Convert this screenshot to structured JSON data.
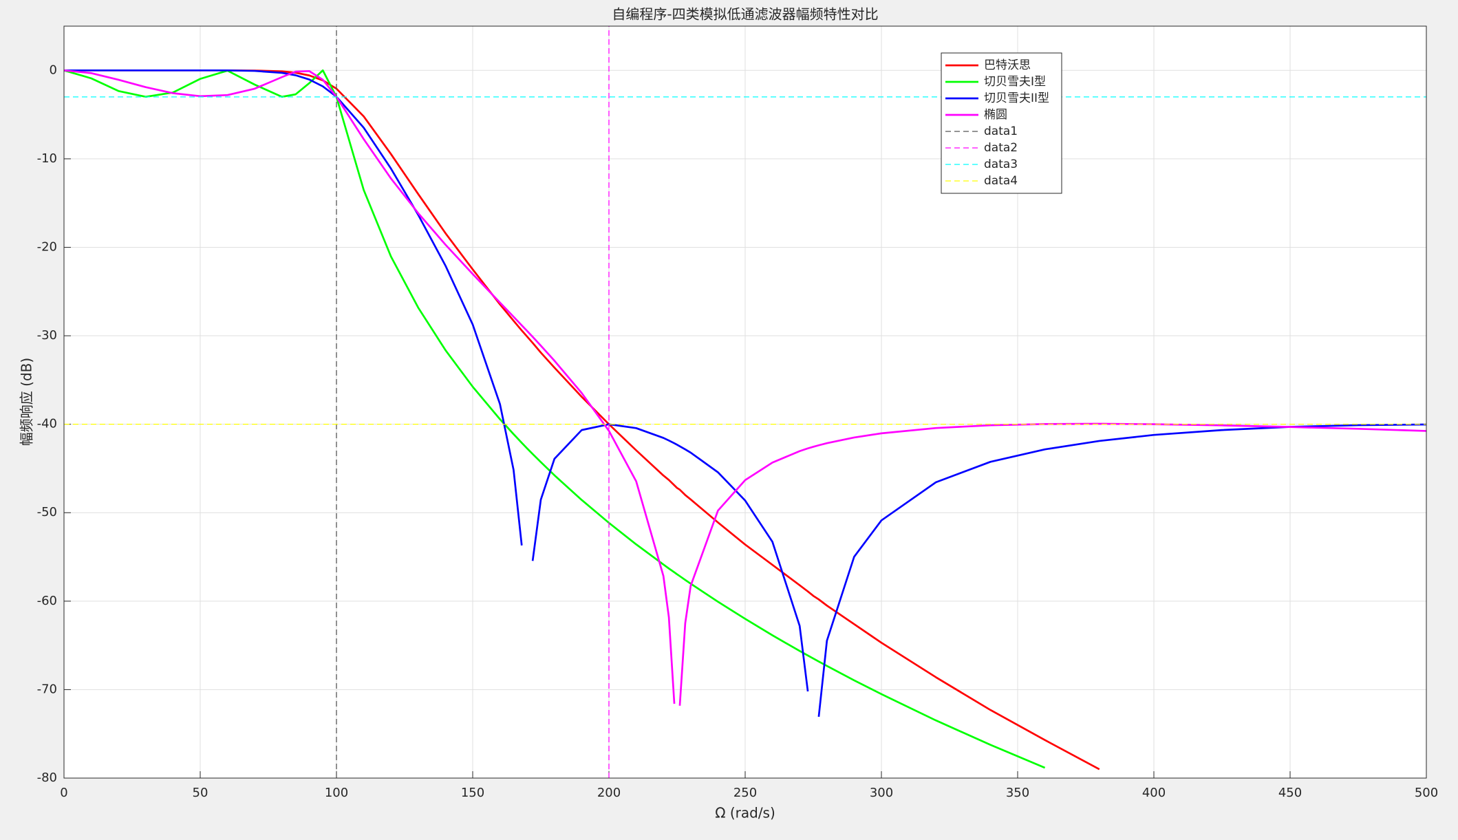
{
  "chart_data": {
    "type": "line",
    "title": "自编程序-四类模拟低通滤波器幅频特性对比",
    "x_label": "Ω (rad/s)",
    "y_label": "幅频响应 (dB)",
    "x": [
      0,
      10,
      20,
      30,
      40,
      50,
      60,
      70,
      80,
      85,
      90,
      95,
      100,
      110,
      120,
      130,
      140,
      150,
      160,
      165,
      168,
      170,
      172,
      175,
      180,
      190,
      200,
      210,
      220,
      222,
      224,
      225,
      226,
      228,
      230,
      240,
      250,
      260,
      270,
      273,
      275,
      277,
      280,
      290,
      300,
      320,
      340,
      360,
      380,
      400,
      425,
      450,
      475,
      500
    ],
    "series": [
      {
        "name": "巴特沃思",
        "color": "#ff0000",
        "line_style": "solid",
        "values": [
          0,
          0,
          0,
          0,
          0,
          0,
          0,
          -0.02,
          -0.11,
          -0.26,
          -0.57,
          -1.13,
          -2.07,
          -5.2,
          -9.46,
          -13.98,
          -18.4,
          -22.5,
          -26.45,
          -28.3,
          -29.4,
          -30.1,
          -30.8,
          -31.9,
          -33.6,
          -36.9,
          -40,
          -42.95,
          -45.8,
          -46.3,
          -46.9,
          -47.2,
          -47.4,
          -48,
          -48.5,
          -51.1,
          -53.6,
          -55.9,
          -58.2,
          -58.9,
          -59.4,
          -59.8,
          -60.5,
          -62.6,
          -64.7,
          -68.6,
          -72.3,
          -75.7,
          -79,
          null,
          null,
          null,
          null,
          null
        ]
      },
      {
        "name": "切贝雪夫I型",
        "color": "#00ff00",
        "line_style": "solid",
        "values": [
          0,
          -0.9,
          -2.33,
          -2.99,
          -2.5,
          -0.96,
          -0.03,
          -1.61,
          -2.99,
          -2.71,
          -1.45,
          0,
          -3,
          -13.52,
          -21.04,
          -26.82,
          -31.62,
          -35.76,
          -39.43,
          -41.12,
          -42.1,
          -42.74,
          -43.37,
          -44.28,
          -45.77,
          -48.56,
          -51.15,
          -53.58,
          -55.86,
          -56.31,
          -56.74,
          -56.96,
          -57.17,
          -57.6,
          -58.02,
          -60.06,
          -62,
          -63.86,
          -65.63,
          -66.14,
          -66.48,
          -66.82,
          -67.32,
          -68.95,
          -70.51,
          -73.48,
          -76.24,
          -78.83,
          null,
          null,
          null,
          null,
          null,
          null
        ]
      },
      {
        "name": "切贝雪夫II型",
        "color": "#0000ff",
        "line_style": "solid",
        "values": [
          0,
          0,
          0,
          0,
          0,
          0,
          0,
          -0.06,
          -0.28,
          -0.55,
          -1.03,
          -1.81,
          -2.98,
          -6.48,
          -11.1,
          -16.33,
          -22.07,
          -28.73,
          -37.72,
          -45.16,
          -53.7,
          null,
          -55.45,
          -48.53,
          -43.91,
          -40.66,
          -40,
          -40.44,
          -41.55,
          -41.84,
          -42.15,
          -42.32,
          -42.49,
          -42.84,
          -43.21,
          -45.43,
          -48.63,
          -53.29,
          -62.8,
          -70.2,
          null,
          -73.07,
          -64.47,
          -54.98,
          -50.87,
          -46.56,
          -44.25,
          -42.84,
          -41.89,
          -41.21,
          -40.66,
          -40.3,
          -40.11,
          -40.03
        ]
      },
      {
        "name": "椭圆",
        "color": "#ff00ff",
        "line_style": "solid",
        "values": [
          0,
          -0.31,
          -1.06,
          -1.9,
          -2.58,
          -2.92,
          -2.79,
          -2.07,
          -0.76,
          -0.14,
          -0.08,
          -1.06,
          -2.99,
          -7.77,
          -12.22,
          -16.14,
          -19.7,
          -23.02,
          -26.25,
          -27.85,
          -28.82,
          -29.47,
          -30.12,
          -31.12,
          -32.82,
          -36.47,
          -40.75,
          -46.45,
          -57.17,
          -61.83,
          -71.6,
          null,
          -71.82,
          -62.5,
          -58.27,
          -49.77,
          -46.32,
          -44.33,
          -43.04,
          -42.73,
          -42.55,
          -42.38,
          -42.14,
          -41.5,
          -41.03,
          -40.43,
          -40.12,
          -39.98,
          -39.95,
          -40,
          -40.13,
          -40.31,
          -40.52,
          -40.76
        ]
      },
      {
        "name": "data1",
        "color": "#555555",
        "line_style": "dashed",
        "x": [
          100,
          100
        ],
        "values": [
          -80,
          5
        ]
      },
      {
        "name": "data2",
        "color": "#ff00ff",
        "line_style": "dashed",
        "x": [
          200,
          200
        ],
        "values": [
          -80,
          5
        ]
      },
      {
        "name": "data3",
        "color": "#00ffff",
        "line_style": "dashed",
        "x": [
          0,
          500
        ],
        "values": [
          -3,
          -3
        ]
      },
      {
        "name": "data4",
        "color": "#ffff00",
        "line_style": "dashed",
        "x": [
          0,
          500
        ],
        "values": [
          -40,
          -40
        ]
      }
    ],
    "xlim": [
      0,
      500
    ],
    "xticks": [
      0,
      50,
      100,
      150,
      200,
      250,
      300,
      350,
      400,
      450,
      500
    ],
    "ylim": [
      -80,
      5
    ],
    "yticks": [
      -80,
      -70,
      -60,
      -50,
      -40,
      -30,
      -20,
      -10,
      0
    ],
    "grid": true,
    "legend": "northeast"
  }
}
